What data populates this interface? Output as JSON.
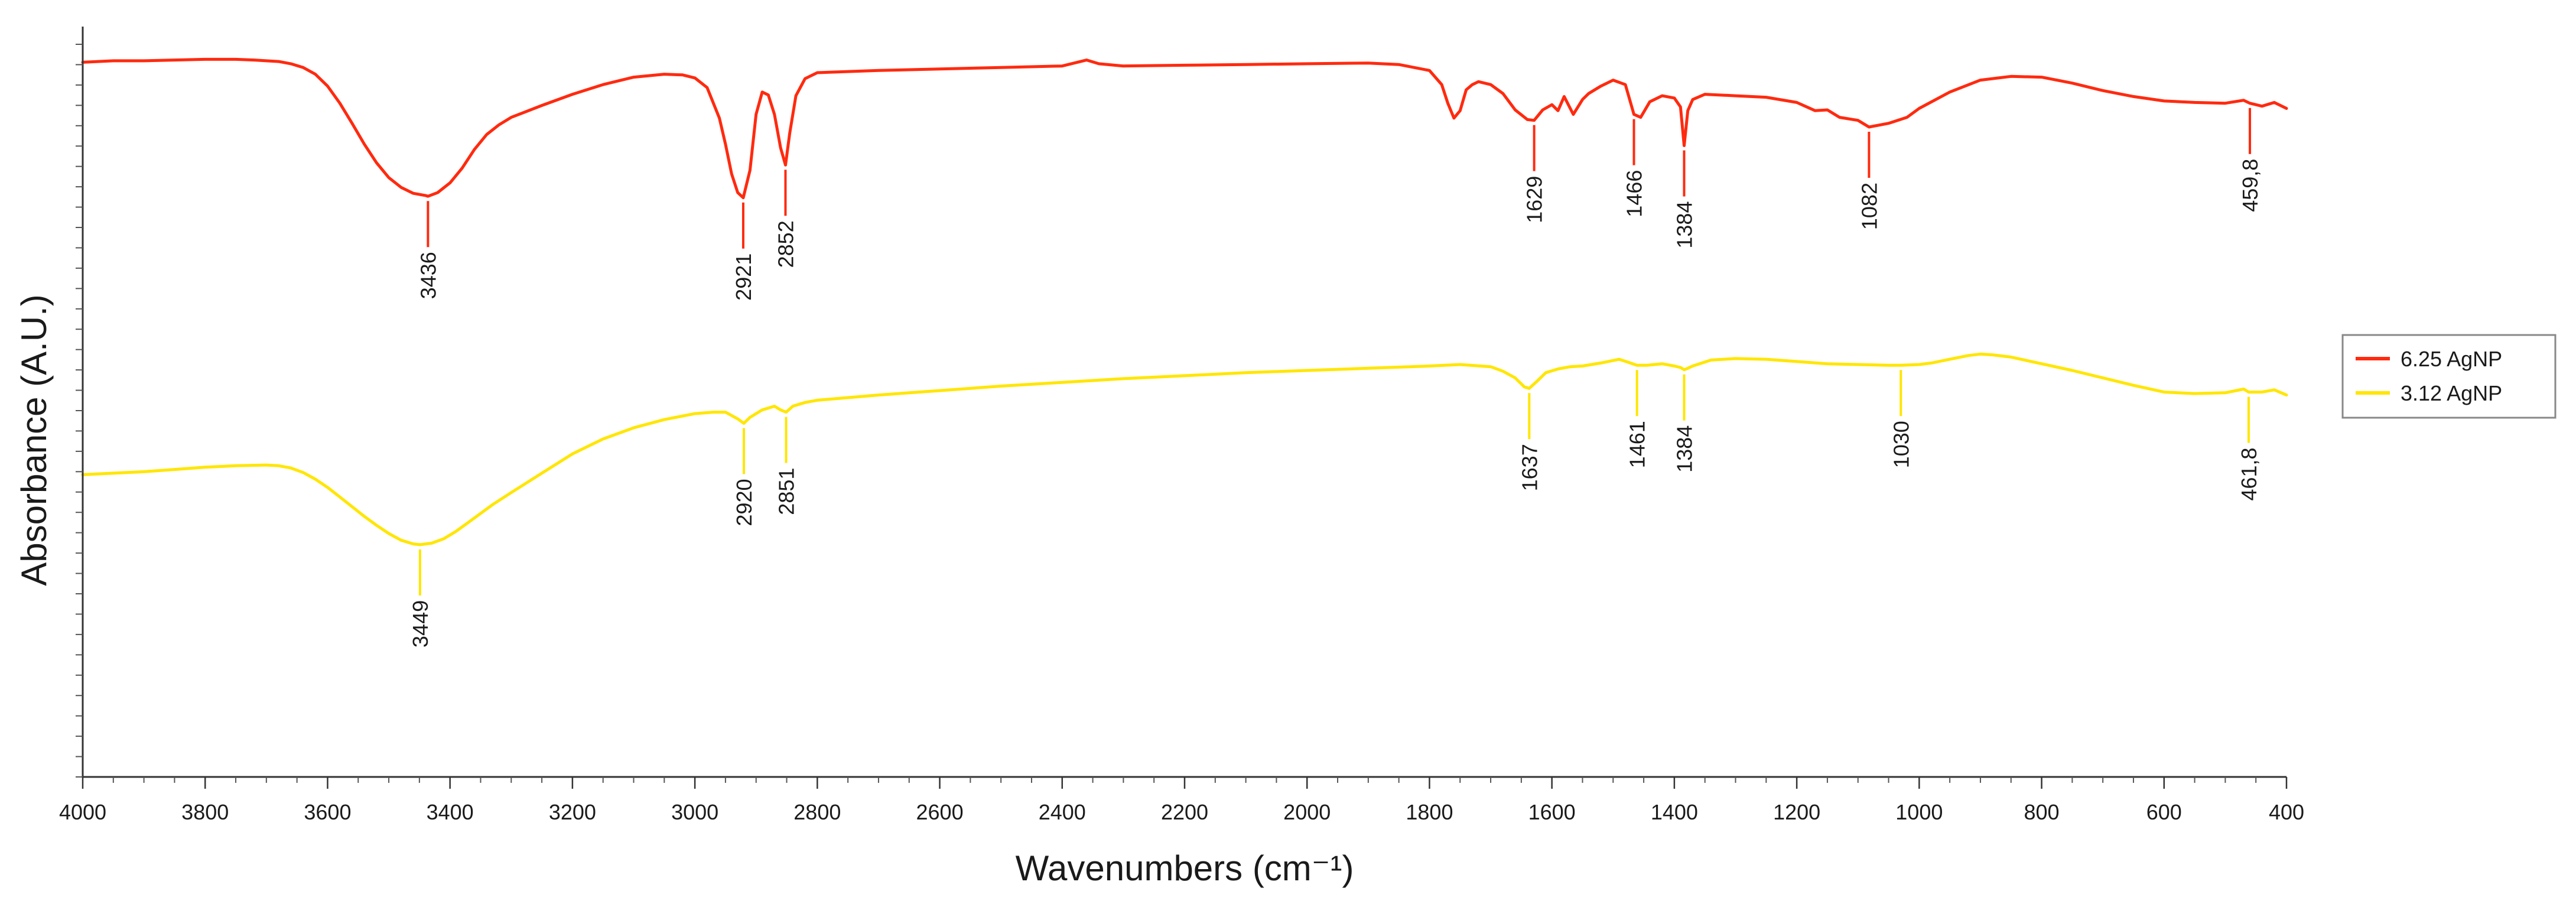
{
  "chart_data": {
    "type": "line",
    "title": "",
    "xlabel": "Wavenumbers (cm⁻¹)",
    "ylabel": "Absorbance (A.U.)",
    "x_reversed": true,
    "xlim": [
      4000,
      400
    ],
    "ylim": [
      0,
      100
    ],
    "xticks": [
      4000,
      3800,
      3600,
      3400,
      3200,
      3000,
      2800,
      2600,
      2400,
      2200,
      2000,
      1800,
      1600,
      1400,
      1200,
      1000,
      800,
      600,
      400
    ],
    "xtick_labels": [
      "4000",
      "3800",
      "3600",
      "3400",
      "3200",
      "3000",
      "2800",
      "2600",
      "2400",
      "2200",
      "2000",
      "1800",
      "1600",
      "1400",
      "1200",
      "1000",
      "800",
      "600",
      "400"
    ],
    "yticks_labeled": false,
    "grid": false,
    "legend_position": "right",
    "series": [
      {
        "name": "6.25 AgNP",
        "color": "#ff2a0f",
        "x": [
          4000,
          3950,
          3900,
          3850,
          3800,
          3750,
          3720,
          3700,
          3680,
          3660,
          3640,
          3620,
          3600,
          3580,
          3560,
          3540,
          3520,
          3500,
          3480,
          3460,
          3440,
          3436,
          3420,
          3400,
          3380,
          3360,
          3340,
          3320,
          3300,
          3250,
          3200,
          3150,
          3100,
          3050,
          3020,
          3000,
          2980,
          2960,
          2950,
          2940,
          2930,
          2921,
          2910,
          2900,
          2890,
          2880,
          2870,
          2860,
          2852,
          2845,
          2835,
          2820,
          2800,
          2700,
          2600,
          2500,
          2400,
          2360,
          2340,
          2300,
          2200,
          2100,
          2000,
          1900,
          1850,
          1800,
          1780,
          1770,
          1760,
          1750,
          1740,
          1730,
          1720,
          1700,
          1680,
          1660,
          1640,
          1629,
          1615,
          1600,
          1590,
          1580,
          1565,
          1550,
          1540,
          1520,
          1500,
          1480,
          1466,
          1455,
          1440,
          1420,
          1400,
          1390,
          1384,
          1378,
          1370,
          1350,
          1300,
          1250,
          1200,
          1170,
          1150,
          1130,
          1100,
          1082,
          1050,
          1020,
          1000,
          950,
          900,
          850,
          800,
          750,
          700,
          650,
          600,
          550,
          500,
          470,
          459.8,
          440,
          420,
          400
        ],
        "y": [
          96,
          96.2,
          96.2,
          96.3,
          96.4,
          96.4,
          96.3,
          96.2,
          96.1,
          95.8,
          95.3,
          94.4,
          92.8,
          90.5,
          87.8,
          85.0,
          82.5,
          80.5,
          79.2,
          78.4,
          78.1,
          78.0,
          78.5,
          79.8,
          81.8,
          84.3,
          86.3,
          87.6,
          88.6,
          90.2,
          91.7,
          93.0,
          94.0,
          94.4,
          94.3,
          93.9,
          92.6,
          88.5,
          85.0,
          81.0,
          78.5,
          77.8,
          81.5,
          89.0,
          92.0,
          91.6,
          89.0,
          84.5,
          82.2,
          86.5,
          91.5,
          93.8,
          94.6,
          94.9,
          95.1,
          95.3,
          95.5,
          96.3,
          95.8,
          95.5,
          95.6,
          95.7,
          95.8,
          95.9,
          95.7,
          94.9,
          93.0,
          90.5,
          88.5,
          89.5,
          92.3,
          93.0,
          93.4,
          93.0,
          91.8,
          89.6,
          88.3,
          88.2,
          89.6,
          90.3,
          89.5,
          91.4,
          89.0,
          91.0,
          91.8,
          92.8,
          93.6,
          93.0,
          89.0,
          88.6,
          90.7,
          91.5,
          91.2,
          90.0,
          84.8,
          89.5,
          91.0,
          91.7,
          91.5,
          91.3,
          90.6,
          89.5,
          89.6,
          88.6,
          88.2,
          87.3,
          87.8,
          88.6,
          89.8,
          92.0,
          93.6,
          94.1,
          94.0,
          93.2,
          92.2,
          91.4,
          90.8,
          90.6,
          90.5,
          90.9,
          90.5,
          90.1,
          90.6,
          89.8
        ]
      },
      {
        "name": "3.12 AgNP",
        "color": "#ffe600",
        "x": [
          4000,
          3950,
          3900,
          3850,
          3800,
          3750,
          3700,
          3680,
          3660,
          3640,
          3620,
          3600,
          3580,
          3560,
          3540,
          3520,
          3500,
          3480,
          3460,
          3449,
          3430,
          3410,
          3390,
          3370,
          3350,
          3330,
          3300,
          3250,
          3200,
          3150,
          3100,
          3050,
          3000,
          2970,
          2950,
          2930,
          2920,
          2910,
          2890,
          2870,
          2860,
          2851,
          2840,
          2820,
          2800,
          2700,
          2600,
          2500,
          2400,
          2300,
          2200,
          2100,
          2000,
          1900,
          1800,
          1750,
          1700,
          1680,
          1660,
          1645,
          1637,
          1625,
          1610,
          1590,
          1570,
          1550,
          1520,
          1490,
          1475,
          1461,
          1445,
          1420,
          1400,
          1390,
          1384,
          1378,
          1370,
          1340,
          1300,
          1250,
          1200,
          1150,
          1100,
          1050,
          1030,
          1000,
          980,
          950,
          920,
          900,
          880,
          850,
          800,
          750,
          700,
          650,
          600,
          550,
          500,
          470,
          461.8,
          440,
          420,
          400
        ],
        "y": [
          40.6,
          40.8,
          41.0,
          41.3,
          41.6,
          41.8,
          41.9,
          41.8,
          41.5,
          40.9,
          40.0,
          38.9,
          37.6,
          36.3,
          35.0,
          33.8,
          32.7,
          31.8,
          31.3,
          31.2,
          31.4,
          32.0,
          33.0,
          34.2,
          35.4,
          36.6,
          38.2,
          40.8,
          43.4,
          45.4,
          46.9,
          48.0,
          48.8,
          49.0,
          49.0,
          48.1,
          47.5,
          48.3,
          49.3,
          49.8,
          49.3,
          49.0,
          49.8,
          50.3,
          50.6,
          51.3,
          51.9,
          52.5,
          53.0,
          53.5,
          53.9,
          54.3,
          54.6,
          54.9,
          55.2,
          55.4,
          55.1,
          54.5,
          53.6,
          52.4,
          52.2,
          53.1,
          54.3,
          54.8,
          55.1,
          55.2,
          55.6,
          56.1,
          55.7,
          55.3,
          55.3,
          55.5,
          55.2,
          55.0,
          54.7,
          54.9,
          55.2,
          56.0,
          56.2,
          56.1,
          55.8,
          55.5,
          55.4,
          55.3,
          55.3,
          55.4,
          55.6,
          56.1,
          56.6,
          56.8,
          56.7,
          56.4,
          55.5,
          54.6,
          53.6,
          52.6,
          51.7,
          51.5,
          51.6,
          52.1,
          51.7,
          51.7,
          52.0,
          51.3
        ]
      }
    ],
    "peaks": [
      {
        "series": "6.25 AgNP",
        "x": 3436,
        "label": "3436"
      },
      {
        "series": "6.25 AgNP",
        "x": 2921,
        "label": "2921"
      },
      {
        "series": "6.25 AgNP",
        "x": 2852,
        "label": "2852"
      },
      {
        "series": "6.25 AgNP",
        "x": 1629,
        "label": "1629"
      },
      {
        "series": "6.25 AgNP",
        "x": 1466,
        "label": "1466"
      },
      {
        "series": "6.25 AgNP",
        "x": 1384,
        "label": "1384"
      },
      {
        "series": "6.25 AgNP",
        "x": 1082,
        "label": "1082"
      },
      {
        "series": "6.25 AgNP",
        "x": 459.8,
        "label": "459,8"
      },
      {
        "series": "3.12 AgNP",
        "x": 3449,
        "label": "3449"
      },
      {
        "series": "3.12 AgNP",
        "x": 2920,
        "label": "2920"
      },
      {
        "series": "3.12 AgNP",
        "x": 2851,
        "label": "2851"
      },
      {
        "series": "3.12 AgNP",
        "x": 1637,
        "label": "1637"
      },
      {
        "series": "3.12 AgNP",
        "x": 1461,
        "label": "1461"
      },
      {
        "series": "3.12 AgNP",
        "x": 1384,
        "label": "1384"
      },
      {
        "series": "3.12 AgNP",
        "x": 1030,
        "label": "1030"
      },
      {
        "series": "3.12 AgNP",
        "x": 461.8,
        "label": "461,8"
      }
    ]
  }
}
